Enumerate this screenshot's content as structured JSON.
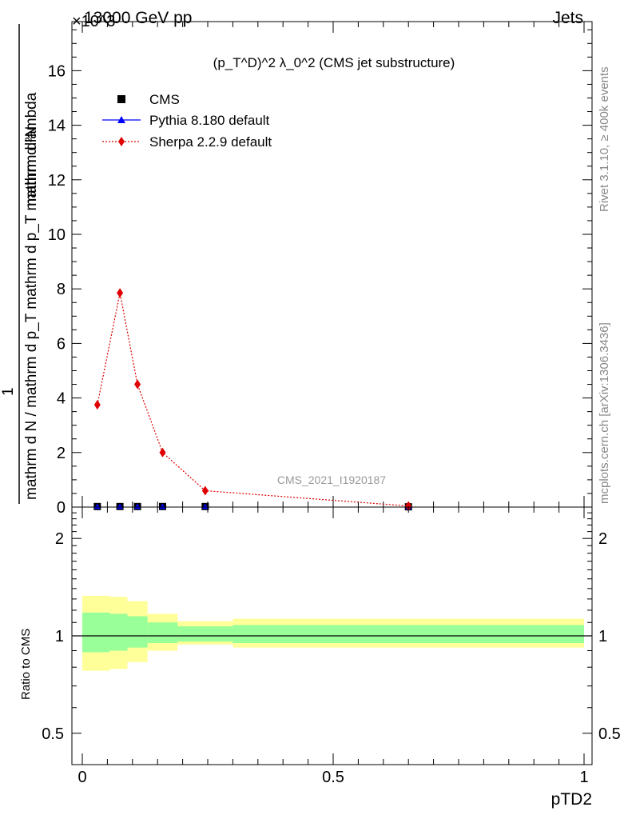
{
  "header": {
    "left": "13000 GeV pp",
    "right": "Jets",
    "exponent": "×10^3"
  },
  "side_labels": {
    "rivet": "Rivet 3.1.10, ≥ 400k events",
    "mcplots": "mcplots.cern.ch [arXiv:1306.3436]"
  },
  "watermark": "CMS_2021_I1920187",
  "main_axis": {
    "ylabel_numerator": "mathrm d²N",
    "ylabel_denominator": "mathrm d N / mathrm d p_T mathrm d p_T mathrm d lambda",
    "ylabel_one": "1"
  },
  "chart_data": [
    {
      "type": "line",
      "title": "(p_T^D)^2 λ_0^2 (CMS jet substructure)",
      "xlabel": "pTD2",
      "ylabel": "1/N dN/dp_T dN/dλ",
      "xlim": [
        0,
        1
      ],
      "ylim": [
        0,
        17.8
      ],
      "y_multiplier": "×10^3",
      "yticks": [
        0,
        2,
        4,
        6,
        8,
        10,
        12,
        14,
        16
      ],
      "xticks": [
        0,
        0.5,
        1
      ],
      "grid": false,
      "legend_position": "top-left",
      "series": [
        {
          "name": "CMS",
          "marker": "square",
          "color": "#000000",
          "x": [
            0.03,
            0.075,
            0.11,
            0.16,
            0.245,
            0.65
          ],
          "y": [
            0.02,
            0.02,
            0.02,
            0.02,
            0.02,
            0.01
          ]
        },
        {
          "name": "Pythia 8.180 default",
          "marker": "triangle",
          "color": "#0000ff",
          "x": [
            0.03,
            0.075,
            0.11,
            0.16,
            0.245,
            0.65
          ],
          "y": [
            0.02,
            0.02,
            0.02,
            0.02,
            0.02,
            0.01
          ]
        },
        {
          "name": "Sherpa 2.2.9 default",
          "marker": "diamond",
          "line": "dotted",
          "color": "#e00000",
          "x": [
            0.03,
            0.075,
            0.11,
            0.16,
            0.245,
            0.65
          ],
          "y": [
            3.75,
            7.85,
            4.5,
            2.0,
            0.6,
            0.04
          ]
        }
      ]
    },
    {
      "type": "area",
      "ylabel": "Ratio to CMS",
      "xlim": [
        0,
        1
      ],
      "ylim": [
        0.4,
        2.5
      ],
      "y_scale": "log",
      "yticks": [
        0.5,
        1,
        2
      ],
      "reference_line": 1,
      "bin_edges": [
        0,
        0.055,
        0.09,
        0.13,
        0.19,
        0.3,
        1.0
      ],
      "bands": [
        {
          "name": "outer uncertainty",
          "color": "#ffff99",
          "low": [
            0.78,
            0.79,
            0.83,
            0.9,
            0.94,
            0.92
          ],
          "high": [
            1.33,
            1.32,
            1.28,
            1.17,
            1.11,
            1.13
          ]
        },
        {
          "name": "inner uncertainty",
          "color": "#99ff99",
          "low": [
            0.89,
            0.9,
            0.92,
            0.95,
            0.96,
            0.95
          ],
          "high": [
            1.18,
            1.17,
            1.15,
            1.1,
            1.07,
            1.08
          ]
        }
      ]
    }
  ]
}
